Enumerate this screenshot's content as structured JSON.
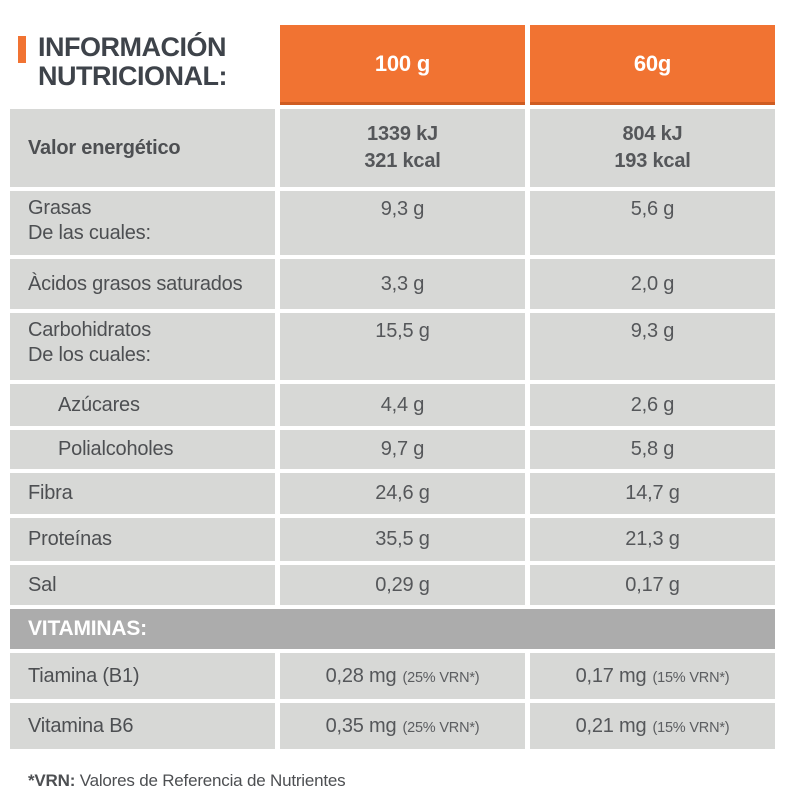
{
  "title": {
    "line1": "INFORMACIÓN",
    "line2": "NUTRICIONAL:"
  },
  "columns": [
    "100 g",
    "60g"
  ],
  "rows": [
    {
      "label": "Valor energético",
      "v1": "1339 kJ",
      "v1_sub": "321 kcal",
      "v2": "804 kJ",
      "v2_sub": "193 kcal"
    },
    {
      "label": "Grasas",
      "sublabel": "De las cuales:",
      "v1": "9,3 g",
      "v2": "5,6 g"
    },
    {
      "label": "Àcidos grasos saturados",
      "v1": "3,3 g",
      "v2": "2,0 g"
    },
    {
      "label": "Carbohidratos",
      "sublabel": "De los cuales:",
      "v1": "15,5 g",
      "v2": "9,3 g"
    },
    {
      "label": "Azúcares",
      "v1": "4,4 g",
      "v2": "2,6 g"
    },
    {
      "label": "Polialcoholes",
      "v1": "9,7 g",
      "v2": "5,8 g"
    },
    {
      "label": "Fibra",
      "v1": "24,6 g",
      "v2": "14,7 g"
    },
    {
      "label": "Proteínas",
      "v1": "35,5 g",
      "v2": "21,3 g"
    },
    {
      "label": "Sal",
      "v1": "0,29 g",
      "v2": "0,17 g"
    }
  ],
  "vitamins_header": "VITAMINAS:",
  "vitamins": [
    {
      "label": "Tiamina (B1)",
      "v1": "0,28 mg",
      "v1_note": "(25% VRN*)",
      "v2": "0,17 mg",
      "v2_note": "(15% VRN*)"
    },
    {
      "label": "Vitamina B6",
      "v1": "0,35 mg",
      "v1_note": "(25% VRN*)",
      "v2": "0,21 mg",
      "v2_note": "(15% VRN*)"
    }
  ],
  "footnote": {
    "bold": "*VRN:",
    "text": " Valores de Referencia de Nutrientes"
  },
  "colors": {
    "accent_orange": "#f17332",
    "header_border": "#cf5c22",
    "row_gray": "#d7d8d6",
    "vitamins_bar_gray": "#acacac",
    "title_text": "#3e434a",
    "body_text": "#4d4f52"
  }
}
